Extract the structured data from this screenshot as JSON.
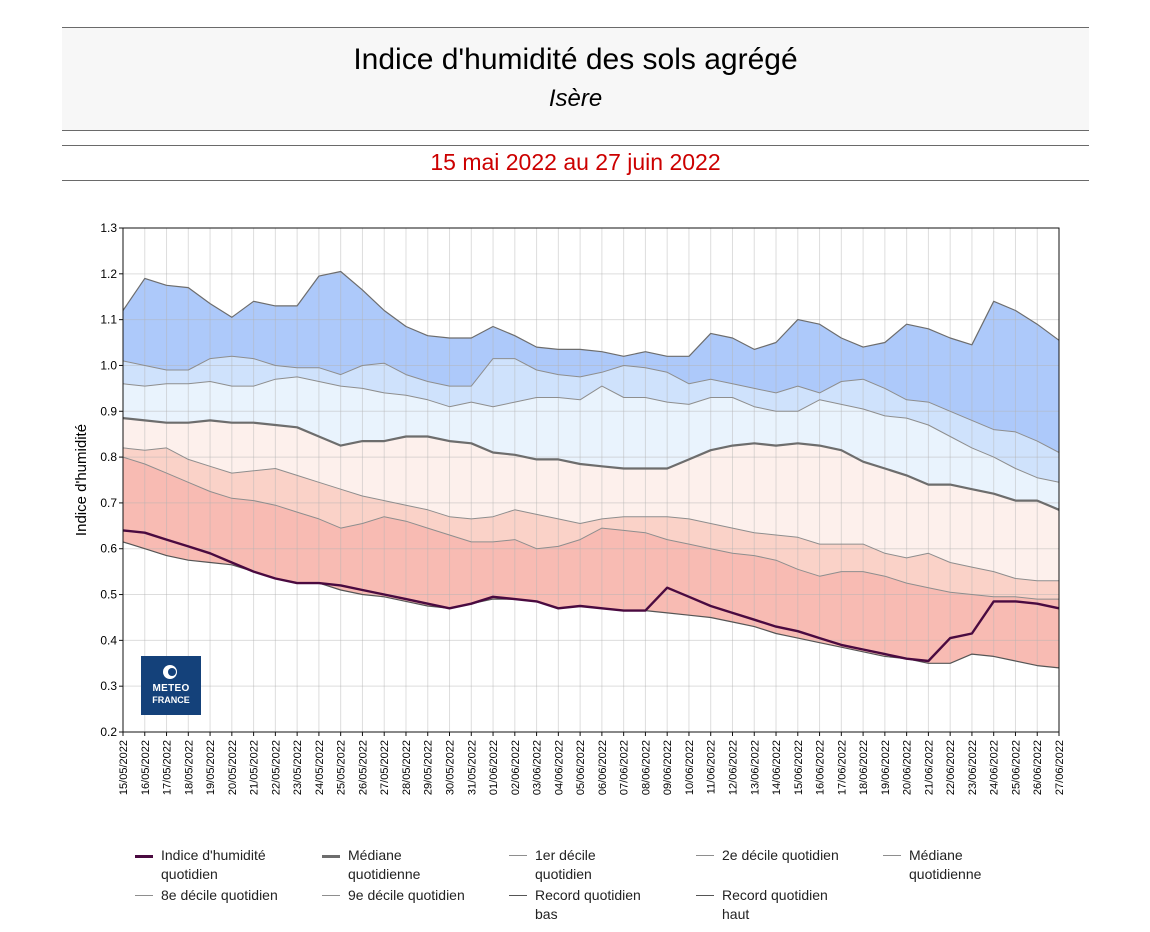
{
  "header": {
    "title": "Indice d'humidité des sols agrégé",
    "subtitle": "Isère",
    "period": "15 mai 2022 au 27 juin 2022"
  },
  "logo": {
    "line1": "METEO",
    "line2": "FRANCE"
  },
  "colors": {
    "record_high_band": "#adc9fa",
    "d9_band": "#cfe2fc",
    "d8_band": "#e9f3fd",
    "median_upper_band": "#fdf0ec",
    "d2_band": "#fad2c8",
    "record_low_band": "#f8bbb3",
    "index_line": "#4a0a40",
    "median_line": "#6d6d6d",
    "decile_line": "#8e8e8e"
  },
  "legend": [
    {
      "label": "Indice d'humidité quotidien",
      "style": "index"
    },
    {
      "label": "Médiane quotidienne",
      "style": "median"
    },
    {
      "label": "1er décile quotidien",
      "style": "thin"
    },
    {
      "label": "2e décile quotidien",
      "style": "thin"
    },
    {
      "label": "Médiane quotidienne",
      "style": "thin"
    },
    {
      "label": "8e décile quotidien",
      "style": "thin"
    },
    {
      "label": "9e décile quotidien",
      "style": "thin"
    },
    {
      "label": "Record quotidien bas",
      "style": "record"
    },
    {
      "label": "Record quotidien haut",
      "style": "record"
    }
  ],
  "chart_data": {
    "type": "area",
    "ylabel": "Indice d'humidité",
    "xlabel": "",
    "ylim": [
      0.2,
      1.3
    ],
    "yticks": [
      "0.2",
      "0.3",
      "0.4",
      "0.5",
      "0.6",
      "0.7",
      "0.8",
      "0.9",
      "1.0",
      "1.1",
      "1.2",
      "1.3"
    ],
    "grid": true,
    "legend_position": "bottom",
    "categories": [
      "15/05/2022",
      "16/05/2022",
      "17/05/2022",
      "18/05/2022",
      "19/05/2022",
      "20/05/2022",
      "21/05/2022",
      "22/05/2022",
      "23/05/2022",
      "24/05/2022",
      "25/05/2022",
      "26/05/2022",
      "27/05/2022",
      "28/05/2022",
      "29/05/2022",
      "30/05/2022",
      "31/05/2022",
      "01/06/2022",
      "02/06/2022",
      "03/06/2022",
      "04/06/2022",
      "05/06/2022",
      "06/06/2022",
      "07/06/2022",
      "08/06/2022",
      "09/06/2022",
      "10/06/2022",
      "11/06/2022",
      "12/06/2022",
      "13/06/2022",
      "14/06/2022",
      "15/06/2022",
      "16/06/2022",
      "17/06/2022",
      "18/06/2022",
      "19/06/2022",
      "20/06/2022",
      "21/06/2022",
      "22/06/2022",
      "23/06/2022",
      "24/06/2022",
      "25/06/2022",
      "26/06/2022",
      "27/06/2022"
    ],
    "series": [
      {
        "name": "Record quotidien haut",
        "values": [
          1.12,
          1.19,
          1.175,
          1.17,
          1.135,
          1.105,
          1.14,
          1.13,
          1.13,
          1.195,
          1.205,
          1.165,
          1.12,
          1.085,
          1.065,
          1.06,
          1.06,
          1.085,
          1.065,
          1.04,
          1.035,
          1.035,
          1.03,
          1.02,
          1.03,
          1.02,
          1.02,
          1.07,
          1.06,
          1.035,
          1.05,
          1.1,
          1.09,
          1.06,
          1.04,
          1.05,
          1.09,
          1.08,
          1.06,
          1.045,
          1.14,
          1.12,
          1.09,
          1.055
        ]
      },
      {
        "name": "9e décile quotidien",
        "values": [
          1.01,
          1.0,
          0.99,
          0.99,
          1.015,
          1.02,
          1.015,
          1.0,
          0.995,
          0.995,
          0.98,
          1.0,
          1.005,
          0.98,
          0.965,
          0.955,
          0.955,
          1.015,
          1.015,
          0.99,
          0.98,
          0.975,
          0.985,
          1.0,
          0.995,
          0.985,
          0.96,
          0.97,
          0.96,
          0.95,
          0.94,
          0.955,
          0.94,
          0.965,
          0.97,
          0.95,
          0.925,
          0.92,
          0.9,
          0.88,
          0.86,
          0.855,
          0.835,
          0.81
        ]
      },
      {
        "name": "8e décile quotidien",
        "values": [
          0.96,
          0.955,
          0.96,
          0.96,
          0.965,
          0.955,
          0.955,
          0.97,
          0.975,
          0.965,
          0.955,
          0.95,
          0.94,
          0.935,
          0.925,
          0.91,
          0.92,
          0.91,
          0.92,
          0.93,
          0.93,
          0.925,
          0.955,
          0.93,
          0.93,
          0.92,
          0.915,
          0.93,
          0.93,
          0.91,
          0.9,
          0.9,
          0.925,
          0.915,
          0.905,
          0.89,
          0.885,
          0.87,
          0.845,
          0.82,
          0.8,
          0.775,
          0.755,
          0.745
        ]
      },
      {
        "name": "Médiane quotidienne",
        "values": [
          0.885,
          0.88,
          0.875,
          0.875,
          0.88,
          0.875,
          0.875,
          0.87,
          0.865,
          0.845,
          0.825,
          0.835,
          0.835,
          0.845,
          0.845,
          0.835,
          0.83,
          0.81,
          0.805,
          0.795,
          0.795,
          0.785,
          0.78,
          0.775,
          0.775,
          0.775,
          0.795,
          0.815,
          0.825,
          0.83,
          0.825,
          0.83,
          0.825,
          0.815,
          0.79,
          0.775,
          0.76,
          0.74,
          0.74,
          0.73,
          0.72,
          0.705,
          0.705,
          0.685
        ]
      },
      {
        "name": "2e décile quotidien",
        "values": [
          0.82,
          0.815,
          0.82,
          0.795,
          0.78,
          0.765,
          0.77,
          0.775,
          0.76,
          0.745,
          0.73,
          0.715,
          0.705,
          0.695,
          0.685,
          0.67,
          0.665,
          0.67,
          0.685,
          0.675,
          0.665,
          0.655,
          0.665,
          0.67,
          0.67,
          0.67,
          0.665,
          0.655,
          0.645,
          0.635,
          0.63,
          0.625,
          0.61,
          0.61,
          0.61,
          0.59,
          0.58,
          0.59,
          0.57,
          0.56,
          0.55,
          0.535,
          0.53,
          0.53
        ]
      },
      {
        "name": "1er décile quotidien",
        "values": [
          0.8,
          0.785,
          0.765,
          0.745,
          0.725,
          0.71,
          0.705,
          0.695,
          0.68,
          0.665,
          0.645,
          0.655,
          0.67,
          0.66,
          0.645,
          0.63,
          0.615,
          0.615,
          0.62,
          0.6,
          0.605,
          0.62,
          0.645,
          0.64,
          0.635,
          0.62,
          0.61,
          0.6,
          0.59,
          0.585,
          0.575,
          0.555,
          0.54,
          0.55,
          0.55,
          0.54,
          0.525,
          0.515,
          0.505,
          0.5,
          0.495,
          0.495,
          0.49,
          0.49
        ]
      },
      {
        "name": "Record quotidien bas",
        "values": [
          0.615,
          0.6,
          0.585,
          0.575,
          0.57,
          0.565,
          0.55,
          0.535,
          0.525,
          0.525,
          0.51,
          0.5,
          0.495,
          0.485,
          0.475,
          0.47,
          0.48,
          0.49,
          0.49,
          0.485,
          0.47,
          0.475,
          0.47,
          0.465,
          0.465,
          0.46,
          0.455,
          0.45,
          0.44,
          0.43,
          0.415,
          0.405,
          0.395,
          0.385,
          0.375,
          0.365,
          0.36,
          0.35,
          0.35,
          0.37,
          0.365,
          0.355,
          0.345,
          0.34
        ]
      },
      {
        "name": "Indice d'humidité quotidien",
        "values": [
          0.64,
          0.635,
          0.62,
          0.605,
          0.59,
          0.57,
          0.55,
          0.535,
          0.525,
          0.525,
          0.52,
          0.51,
          0.5,
          0.49,
          0.48,
          0.47,
          0.48,
          0.495,
          0.49,
          0.485,
          0.47,
          0.475,
          0.47,
          0.465,
          0.465,
          0.515,
          0.495,
          0.475,
          0.46,
          0.445,
          0.43,
          0.42,
          0.405,
          0.39,
          0.38,
          0.37,
          0.36,
          0.355,
          0.405,
          0.415,
          0.485,
          0.485,
          0.48,
          0.47
        ]
      }
    ]
  }
}
